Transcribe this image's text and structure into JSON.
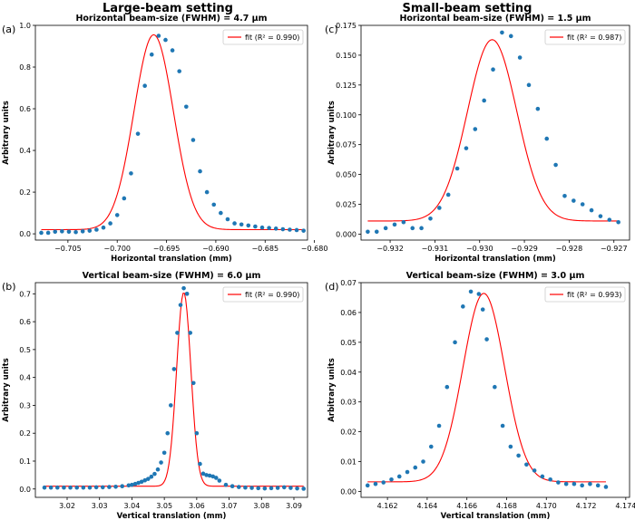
{
  "headers": {
    "left": "Large-beam setting",
    "right": "Small-beam setting"
  },
  "colors": {
    "points": "#1f77b4",
    "fit": "#ff0000"
  },
  "chart_data": [
    {
      "id": "a",
      "type": "scatter",
      "panel_label": "(a)",
      "title": "Horizontal beam-size (FWHM) = 4.7 µm",
      "xlabel": "Horizontal translation (mm)",
      "ylabel": "Arbitrary units",
      "xlim": [
        -0.7083,
        -0.6807
      ],
      "ylim": [
        -0.03,
        1.0
      ],
      "xticks": [
        -0.705,
        -0.7,
        -0.695,
        -0.69,
        -0.685,
        -0.68
      ],
      "xtick_labels": [
        "−0.705",
        "−0.700",
        "−0.695",
        "−0.690",
        "−0.685",
        "−0.680"
      ],
      "yticks": [
        0.0,
        0.2,
        0.4,
        0.6,
        0.8,
        1.0
      ],
      "ytick_labels": [
        "0.0",
        "0.2",
        "0.4",
        "0.6",
        "0.8",
        "1.0"
      ],
      "legend": {
        "label": "fit (R² = 0.990)",
        "position": "top-right"
      },
      "fit": {
        "center": -0.6963,
        "sigma": 0.002,
        "amplitude": 0.935,
        "baseline": 0.02
      },
      "series": [
        {
          "name": "data",
          "x": [
            -0.7077,
            -0.707,
            -0.7063,
            -0.7056,
            -0.7049,
            -0.7042,
            -0.7035,
            -0.7028,
            -0.7021,
            -0.7014,
            -0.7007,
            -0.7,
            -0.6993,
            -0.6986,
            -0.6979,
            -0.6972,
            -0.6965,
            -0.6958,
            -0.6951,
            -0.6944,
            -0.6937,
            -0.693,
            -0.6923,
            -0.6916,
            -0.6909,
            -0.6902,
            -0.6895,
            -0.6888,
            -0.6881,
            -0.6874,
            -0.6867,
            -0.686,
            -0.6853,
            -0.6846,
            -0.6839,
            -0.6832,
            -0.6825,
            -0.6818,
            -0.6811
          ],
          "y": [
            0.005,
            0.005,
            0.01,
            0.012,
            0.01,
            0.008,
            0.012,
            0.015,
            0.02,
            0.03,
            0.05,
            0.09,
            0.17,
            0.29,
            0.48,
            0.71,
            0.86,
            0.95,
            0.93,
            0.88,
            0.78,
            0.61,
            0.45,
            0.3,
            0.2,
            0.14,
            0.1,
            0.07,
            0.05,
            0.045,
            0.04,
            0.035,
            0.03,
            0.028,
            0.025,
            0.022,
            0.02,
            0.018,
            0.015
          ]
        }
      ]
    },
    {
      "id": "c",
      "type": "scatter",
      "panel_label": "(c)",
      "title": "Horizontal beam-size (FWHM) = 1.5 µm",
      "xlabel": "Horizontal translation (mm)",
      "ylabel": "Arbitrary units",
      "xlim": [
        -0.93265,
        -0.92665
      ],
      "ylim": [
        -0.005,
        0.175
      ],
      "xticks": [
        -0.932,
        -0.931,
        -0.93,
        -0.929,
        -0.928,
        -0.927
      ],
      "xtick_labels": [
        "−0.932",
        "−0.931",
        "−0.930",
        "−0.929",
        "−0.928",
        "−0.927"
      ],
      "yticks": [
        0.0,
        0.025,
        0.05,
        0.075,
        0.1,
        0.125,
        0.15,
        0.175
      ],
      "ytick_labels": [
        "0.000",
        "0.025",
        "0.050",
        "0.075",
        "0.100",
        "0.125",
        "0.150",
        "0.175"
      ],
      "legend": {
        "label": "fit (R² = 0.987)",
        "position": "top-right"
      },
      "fit": {
        "center": -0.92972,
        "sigma": 0.00055,
        "amplitude": 0.152,
        "baseline": 0.011
      },
      "series": [
        {
          "name": "data",
          "x": [
            -0.9325,
            -0.9323,
            -0.9321,
            -0.9319,
            -0.9317,
            -0.9315,
            -0.9313,
            -0.9311,
            -0.9309,
            -0.9307,
            -0.9305,
            -0.9303,
            -0.9301,
            -0.9299,
            -0.9297,
            -0.9295,
            -0.9293,
            -0.9291,
            -0.9289,
            -0.9287,
            -0.9285,
            -0.9283,
            -0.9281,
            -0.9279,
            -0.9277,
            -0.9275,
            -0.9273,
            -0.9271,
            -0.9269
          ],
          "y": [
            0.002,
            0.002,
            0.005,
            0.008,
            0.01,
            0.005,
            0.005,
            0.013,
            0.022,
            0.033,
            0.055,
            0.072,
            0.088,
            0.112,
            0.138,
            0.169,
            0.166,
            0.148,
            0.125,
            0.105,
            0.08,
            0.058,
            0.032,
            0.028,
            0.025,
            0.02,
            0.015,
            0.012,
            0.01
          ]
        }
      ]
    },
    {
      "id": "b",
      "type": "scatter",
      "panel_label": "(b)",
      "title": "Vertical beam-size (FWHM) = 6.0 µm",
      "xlabel": "Vertical translation (mm)",
      "ylabel": "Arbitrary units",
      "xlim": [
        3.0102,
        3.0942
      ],
      "ylim": [
        -0.03,
        0.74
      ],
      "xticks": [
        3.02,
        3.03,
        3.04,
        3.05,
        3.06,
        3.07,
        3.08,
        3.09
      ],
      "xtick_labels": [
        "3.02",
        "3.03",
        "3.04",
        "3.05",
        "3.06",
        "3.07",
        "3.08",
        "3.09"
      ],
      "yticks": [
        0.0,
        0.1,
        0.2,
        0.3,
        0.4,
        0.5,
        0.6,
        0.7
      ],
      "ytick_labels": [
        "0.0",
        "0.1",
        "0.2",
        "0.3",
        "0.4",
        "0.5",
        "0.6",
        "0.7"
      ],
      "legend": {
        "label": "fit (R² = 0.990)",
        "position": "top-right"
      },
      "fit": {
        "center": 3.056,
        "sigma": 0.0022,
        "amplitude": 0.695,
        "baseline": 0.01
      },
      "series": [
        {
          "name": "data",
          "x": [
            3.013,
            3.015,
            3.017,
            3.019,
            3.021,
            3.023,
            3.025,
            3.027,
            3.029,
            3.031,
            3.033,
            3.035,
            3.037,
            3.039,
            3.04,
            3.041,
            3.042,
            3.043,
            3.044,
            3.045,
            3.046,
            3.047,
            3.048,
            3.049,
            3.05,
            3.051,
            3.052,
            3.053,
            3.054,
            3.055,
            3.056,
            3.057,
            3.058,
            3.059,
            3.06,
            3.061,
            3.062,
            3.063,
            3.064,
            3.065,
            3.066,
            3.067,
            3.069,
            3.071,
            3.073,
            3.075,
            3.077,
            3.079,
            3.081,
            3.083,
            3.085,
            3.087,
            3.089,
            3.091,
            3.093
          ],
          "y": [
            0.005,
            0.005,
            0.005,
            0.005,
            0.005,
            0.005,
            0.005,
            0.005,
            0.006,
            0.006,
            0.007,
            0.008,
            0.01,
            0.013,
            0.015,
            0.018,
            0.022,
            0.026,
            0.031,
            0.036,
            0.044,
            0.054,
            0.07,
            0.095,
            0.13,
            0.2,
            0.3,
            0.43,
            0.56,
            0.66,
            0.72,
            0.7,
            0.56,
            0.38,
            0.2,
            0.09,
            0.055,
            0.05,
            0.048,
            0.045,
            0.04,
            0.03,
            0.015,
            0.01,
            0.007,
            0.005,
            0.004,
            0.003,
            0.002,
            0.003,
            0.004,
            0.006,
            0.004,
            0.002,
            0.001
          ]
        }
      ]
    },
    {
      "id": "d",
      "type": "scatter",
      "panel_label": "(d)",
      "title": "Vertical beam-size (FWHM) = 3.0 µm",
      "xlabel": "Vertical translation (mm)",
      "ylabel": "Arbitrary units",
      "xlim": [
        4.16067,
        4.17419
      ],
      "ylim": [
        -0.002,
        0.07
      ],
      "xticks": [
        4.162,
        4.164,
        4.166,
        4.168,
        4.17,
        4.172,
        4.174
      ],
      "xtick_labels": [
        "4.162",
        "4.164",
        "4.166",
        "4.168",
        "4.170",
        "4.172",
        "4.174"
      ],
      "yticks": [
        0.0,
        0.01,
        0.02,
        0.03,
        0.04,
        0.05,
        0.06,
        0.07
      ],
      "ytick_labels": [
        "0.00",
        "0.01",
        "0.02",
        "0.03",
        "0.04",
        "0.05",
        "0.06",
        "0.07"
      ],
      "legend": {
        "label": "fit (R² = 0.993)",
        "position": "top-right"
      },
      "fit": {
        "center": 4.16685,
        "sigma": 0.00105,
        "amplitude": 0.0632,
        "baseline": 0.0032
      },
      "series": [
        {
          "name": "data",
          "x": [
            4.161,
            4.1614,
            4.1618,
            4.1622,
            4.1626,
            4.163,
            4.1634,
            4.1638,
            4.1642,
            4.1646,
            4.165,
            4.1654,
            4.1658,
            4.1662,
            4.1666,
            4.1668,
            4.167,
            4.1674,
            4.1678,
            4.1682,
            4.1686,
            4.169,
            4.1694,
            4.1698,
            4.1702,
            4.1706,
            4.171,
            4.1714,
            4.1718,
            4.1722,
            4.1726,
            4.173
          ],
          "y": [
            0.002,
            0.0025,
            0.003,
            0.004,
            0.005,
            0.0065,
            0.008,
            0.01,
            0.015,
            0.022,
            0.035,
            0.05,
            0.062,
            0.067,
            0.0662,
            0.061,
            0.051,
            0.035,
            0.022,
            0.015,
            0.012,
            0.009,
            0.007,
            0.005,
            0.004,
            0.003,
            0.0025,
            0.0025,
            0.002,
            0.0025,
            0.002,
            0.0015
          ]
        }
      ]
    }
  ]
}
